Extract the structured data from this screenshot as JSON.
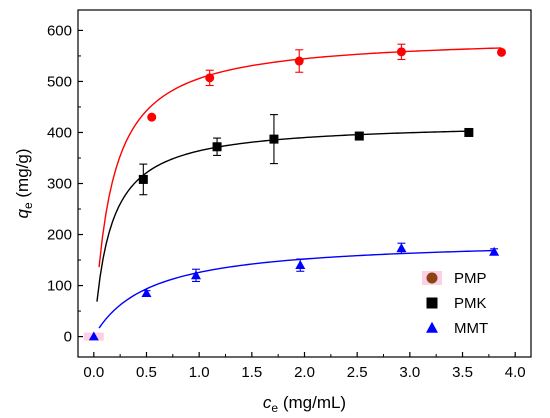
{
  "chart_data": {
    "type": "scatter",
    "xlabel": {
      "main": "c",
      "sub": "e",
      "unit": " (mg/mL)"
    },
    "ylabel": {
      "main": "q",
      "sub": "e",
      "unit": " (mg/g)"
    },
    "xlim": [
      -0.15,
      4.15
    ],
    "ylim": [
      -40,
      640
    ],
    "xticks": [
      "0.0",
      "0.5",
      "1.0",
      "1.5",
      "2.0",
      "2.5",
      "3.0",
      "3.5",
      "4.0"
    ],
    "yticks": [
      "0",
      "100",
      "200",
      "300",
      "400",
      "500",
      "600"
    ],
    "grid": false,
    "legend_position": "bottom-right",
    "series": [
      {
        "name": "PMP",
        "marker": "circle",
        "color": "#ff0000",
        "legend_color": "#8b4513",
        "points": [
          {
            "x": 0.55,
            "y": 430,
            "err": 0
          },
          {
            "x": 1.1,
            "y": 507,
            "err": 15
          },
          {
            "x": 1.95,
            "y": 540,
            "err": 22
          },
          {
            "x": 2.92,
            "y": 558,
            "err": 15
          },
          {
            "x": 3.87,
            "y": 557,
            "err": 0
          }
        ],
        "fit": {
          "qmax": 590,
          "K": 6.0,
          "x_range": [
            0.05,
            3.87
          ]
        }
      },
      {
        "name": "PMK",
        "marker": "square",
        "color": "#000000",
        "legend_color": "#000000",
        "points": [
          {
            "x": 0.47,
            "y": 308,
            "err": 30
          },
          {
            "x": 1.17,
            "y": 372,
            "err": 17
          },
          {
            "x": 1.71,
            "y": 387,
            "err": 48
          },
          {
            "x": 2.52,
            "y": 393,
            "err": 0
          },
          {
            "x": 3.56,
            "y": 400,
            "err": 0
          }
        ],
        "fit": {
          "qmax": 420,
          "K": 6.5,
          "x_range": [
            0.03,
            3.56
          ]
        }
      },
      {
        "name": "MMT",
        "marker": "triangle",
        "color": "#0000ff",
        "legend_color": "#0000ff",
        "points": [
          {
            "x": 0.0,
            "y": 0,
            "err": 0
          },
          {
            "x": 0.5,
            "y": 85,
            "err": 5
          },
          {
            "x": 0.97,
            "y": 120,
            "err": 12
          },
          {
            "x": 1.96,
            "y": 140,
            "err": 12
          },
          {
            "x": 2.92,
            "y": 173,
            "err": 10
          },
          {
            "x": 3.8,
            "y": 166,
            "err": 6
          }
        ],
        "fit": {
          "qmax": 192,
          "K": 1.9,
          "x_range": [
            0.05,
            3.8
          ]
        }
      }
    ]
  }
}
